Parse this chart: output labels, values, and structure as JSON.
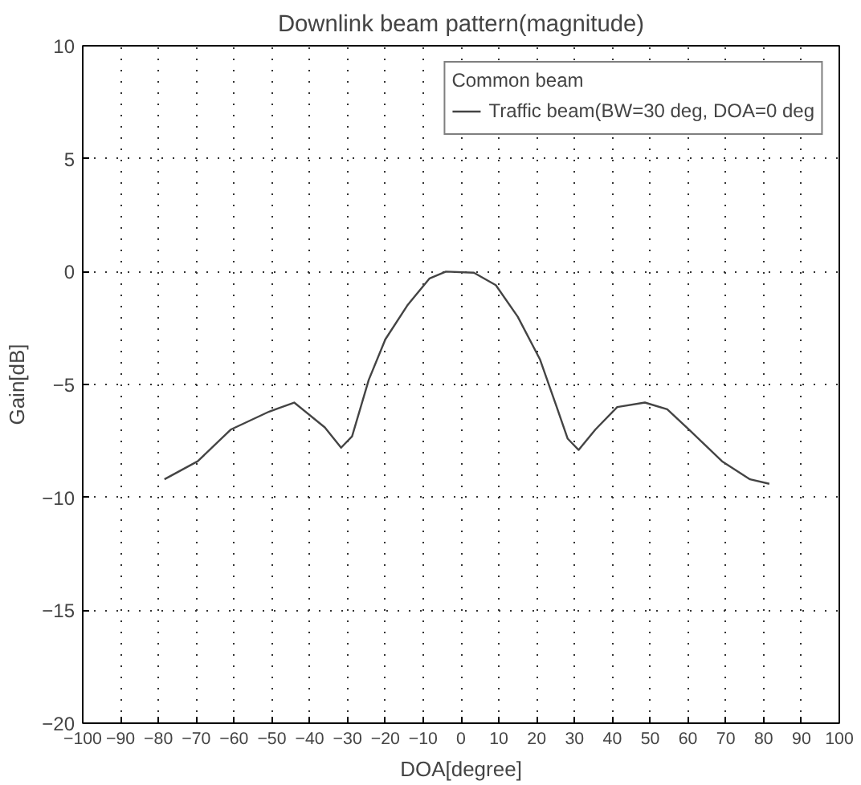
{
  "chart_data": {
    "type": "line",
    "title": "Downlink beam pattern(magnitude)",
    "xlabel": "DOA[degree]",
    "ylabel": "Gain[dB]",
    "xlim": [
      -100,
      100
    ],
    "xticks": [
      -100,
      -90,
      -80,
      -70,
      -60,
      -50,
      -40,
      -30,
      -20,
      -10,
      0,
      10,
      20,
      30,
      40,
      50,
      60,
      70,
      80,
      90,
      100
    ],
    "ylim": [
      -20,
      10
    ],
    "yticks": [
      -20,
      -15,
      -10,
      -5,
      0,
      5,
      10
    ],
    "grid": true,
    "legend": "top right",
    "legend_title": "Common beam",
    "line_style": "solid",
    "series": [
      {
        "name": "Traffic beam(BW=30 deg, DOA=0 deg",
        "color": "#444444",
        "x": [
          -78.4,
          -69.6,
          -60.9,
          -50.7,
          -44.1,
          -36,
          -31.7,
          -28.8,
          -24.4,
          -20,
          -14.2,
          -8.3,
          -4,
          3.4,
          9.2,
          15,
          20.9,
          25.3,
          28.2,
          31.1,
          35.5,
          41.3,
          48.6,
          54.5,
          60.3,
          69,
          76.4,
          81.5
        ],
        "values": [
          -9.2,
          -8.4,
          -7.0,
          -6.2,
          -5.8,
          -6.9,
          -7.8,
          -7.3,
          -4.8,
          -3.0,
          -1.5,
          -0.3,
          0,
          -0.05,
          -0.6,
          -2,
          -3.9,
          -6,
          -7.4,
          -7.9,
          -7,
          -6,
          -5.8,
          -6.1,
          -7,
          -8.4,
          -9.2,
          -9.4
        ]
      }
    ]
  }
}
